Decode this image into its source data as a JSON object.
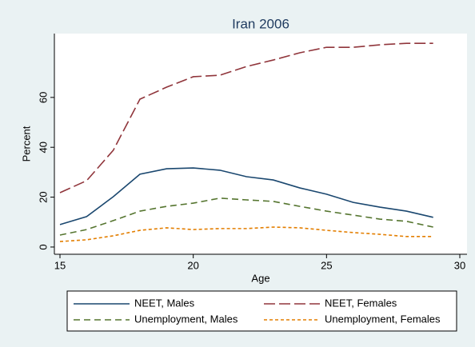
{
  "chart_data": {
    "type": "line",
    "title": "Iran 2006",
    "x_label": "Age",
    "y_label": "Percent",
    "x": [
      15,
      16,
      17,
      18,
      19,
      20,
      21,
      22,
      23,
      24,
      25,
      26,
      27,
      28,
      29
    ],
    "series": [
      {
        "name": "NEET, Males",
        "color": "#1a476f",
        "dash": "solid",
        "values": [
          9,
          12.2,
          20.2,
          29.2,
          31.4,
          31.7,
          30.8,
          28.2,
          26.9,
          23.7,
          21.2,
          17.9,
          16,
          14.4,
          11.9
        ]
      },
      {
        "name": "NEET, Females",
        "color": "#90353b",
        "dash": "longdash",
        "values": [
          21.8,
          26.6,
          38.8,
          59.3,
          64.1,
          68.3,
          68.9,
          72.4,
          75,
          77.9,
          80.1,
          80.1,
          81.1,
          81.7,
          81.7
        ]
      },
      {
        "name": "Unemployment, Males",
        "color": "#55752f",
        "dash": "dash",
        "values": [
          4.8,
          7,
          10.6,
          14.4,
          16.3,
          17.6,
          19.6,
          18.9,
          18.3,
          16.3,
          14.4,
          12.8,
          11.2,
          10.3,
          8
        ]
      },
      {
        "name": "Unemployment, Females",
        "color": "#e37e00",
        "dash": "shortdash",
        "values": [
          2.2,
          2.9,
          4.5,
          6.7,
          7.7,
          7,
          7.4,
          7.4,
          8,
          7.7,
          6.7,
          5.8,
          5.1,
          4.2,
          4.2
        ]
      }
    ],
    "xlim": [
      14.79,
      30.27
    ],
    "xticks": [
      15,
      20,
      25,
      30
    ],
    "ylim": [
      -2.9,
      85.6
    ],
    "yticks": [
      0,
      20,
      40,
      60
    ],
    "grid": false,
    "legend": "bottom"
  }
}
